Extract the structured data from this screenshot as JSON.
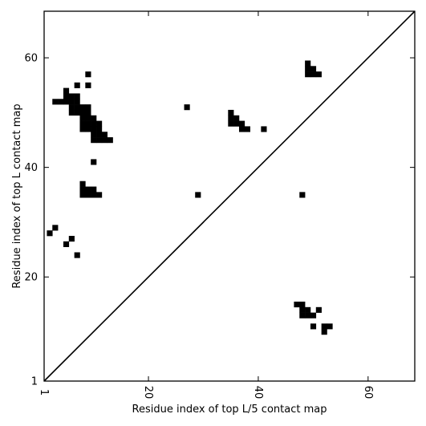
{
  "chart_data": {
    "type": "heatmap",
    "title": "",
    "xlabel": "Residue index of top L/5 contact map",
    "ylabel": "Residue index of top L contact map",
    "xlim": [
      1,
      68.5
    ],
    "ylim": [
      1,
      68.5
    ],
    "x_ticks": [
      1,
      20,
      40,
      60
    ],
    "x_tick_labels": [
      "1",
      "20",
      "40",
      "60"
    ],
    "y_ticks": [
      1,
      20,
      40,
      60
    ],
    "y_tick_labels": [
      "1",
      "20",
      "40",
      "60"
    ],
    "grid": false,
    "diagonal": true,
    "cell_color": "#000000",
    "upper_cells": [
      [
        9,
        57
      ],
      [
        7,
        55
      ],
      [
        9,
        55
      ],
      [
        5,
        54
      ],
      [
        5,
        53
      ],
      [
        6,
        53
      ],
      [
        7,
        53
      ],
      [
        3,
        52
      ],
      [
        4,
        52
      ],
      [
        5,
        52
      ],
      [
        6,
        52
      ],
      [
        7,
        52
      ],
      [
        6,
        51
      ],
      [
        7,
        51
      ],
      [
        8,
        51
      ],
      [
        9,
        51
      ],
      [
        6,
        50
      ],
      [
        7,
        50
      ],
      [
        8,
        50
      ],
      [
        9,
        50
      ],
      [
        8,
        49
      ],
      [
        9,
        49
      ],
      [
        10,
        49
      ],
      [
        8,
        48
      ],
      [
        9,
        48
      ],
      [
        10,
        48
      ],
      [
        11,
        48
      ],
      [
        8,
        47
      ],
      [
        9,
        47
      ],
      [
        10,
        47
      ],
      [
        11,
        47
      ],
      [
        10,
        46
      ],
      [
        11,
        46
      ],
      [
        12,
        46
      ],
      [
        10,
        45
      ],
      [
        11,
        45
      ],
      [
        12,
        45
      ],
      [
        13,
        45
      ],
      [
        10,
        41
      ],
      [
        8,
        37
      ],
      [
        8,
        36
      ],
      [
        9,
        36
      ],
      [
        10,
        36
      ],
      [
        8,
        35
      ],
      [
        9,
        35
      ],
      [
        10,
        35
      ],
      [
        11,
        35
      ],
      [
        3,
        29
      ],
      [
        2,
        28
      ],
      [
        6,
        27
      ],
      [
        5,
        26
      ],
      [
        7,
        24
      ],
      [
        27,
        51
      ],
      [
        35,
        50
      ],
      [
        35,
        49
      ],
      [
        36,
        49
      ],
      [
        35,
        48
      ],
      [
        36,
        48
      ],
      [
        37,
        48
      ],
      [
        37,
        47
      ],
      [
        38,
        47
      ],
      [
        41,
        47
      ],
      [
        29,
        35
      ],
      [
        48,
        35
      ],
      [
        49,
        59
      ],
      [
        49,
        58
      ],
      [
        50,
        58
      ],
      [
        49,
        57
      ],
      [
        50,
        57
      ],
      [
        51,
        57
      ]
    ],
    "lower_cells": [
      [
        47,
        15
      ],
      [
        48,
        15
      ],
      [
        48,
        14
      ],
      [
        49,
        14
      ],
      [
        51,
        14
      ],
      [
        48,
        13
      ],
      [
        49,
        13
      ],
      [
        50,
        13
      ],
      [
        50,
        11
      ],
      [
        52,
        11
      ],
      [
        53,
        11
      ],
      [
        52,
        10
      ]
    ]
  }
}
